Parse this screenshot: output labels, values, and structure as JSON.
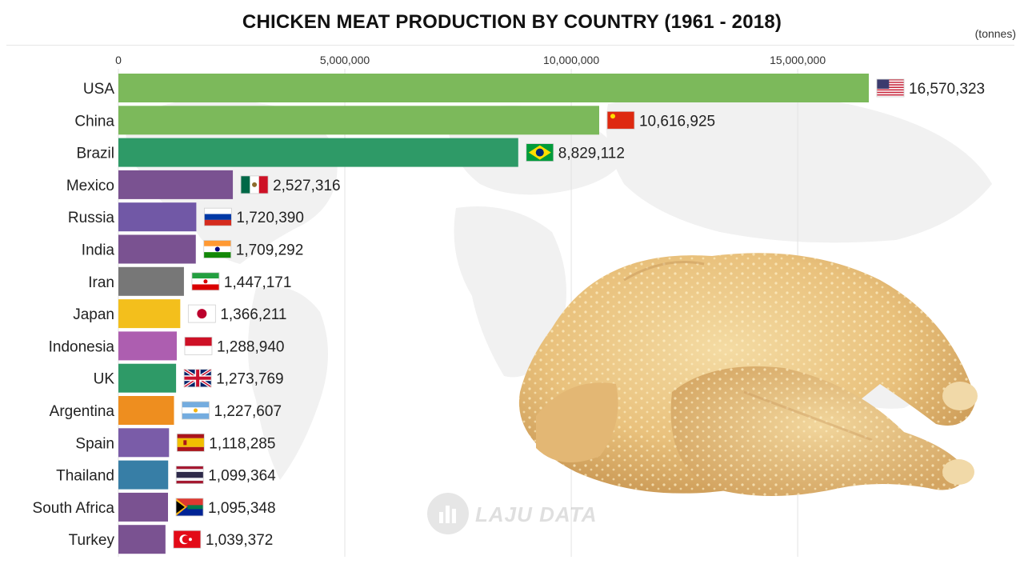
{
  "title": "CHICKEN MEAT PRODUCTION BY COUNTRY (1961 - 2018)",
  "unit_label": "(tonnes)",
  "watermark": "LAJU DATA",
  "chart_data": {
    "type": "bar",
    "orientation": "horizontal",
    "title": "CHICKEN MEAT PRODUCTION BY COUNTRY (1961 - 2018)",
    "unit": "(tonnes)",
    "xlim": [
      0,
      16570323
    ],
    "ticks": [
      0,
      5000000,
      10000000,
      15000000
    ],
    "tick_labels": [
      "0",
      "5,000,000",
      "10,000,000",
      "15,000,000"
    ],
    "grid": true,
    "categories": [
      "USA",
      "China",
      "Brazil",
      "Mexico",
      "Russia",
      "India",
      "Iran",
      "Japan",
      "Indonesia",
      "UK",
      "Argentina",
      "Spain",
      "Thailand",
      "South Africa",
      "Turkey"
    ],
    "values": [
      16570323,
      10616925,
      8829112,
      2527316,
      1720390,
      1709292,
      1447171,
      1366211,
      1288940,
      1273769,
      1227607,
      1118285,
      1099364,
      1095348,
      1039372
    ],
    "value_labels": [
      "16,570,323",
      "10,616,925",
      "8,829,112",
      "2,527,316",
      "1,720,390",
      "1,709,292",
      "1,447,171",
      "1,366,211",
      "1,288,940",
      "1,273,769",
      "1,227,607",
      "1,118,285",
      "1,099,364",
      "1,095,348",
      "1,039,372"
    ],
    "colors": [
      "#7cb95b",
      "#7cb95b",
      "#2e9a67",
      "#7a5291",
      "#7158a6",
      "#7a5291",
      "#777777",
      "#f3bf1c",
      "#ad5eb0",
      "#2e9a67",
      "#ee8e1f",
      "#7a5ca8",
      "#377ea6",
      "#7a5291",
      "#7a5291"
    ],
    "flags": [
      "usa-flag",
      "china-flag",
      "brazil-flag",
      "mexico-flag",
      "russia-flag",
      "india-flag",
      "iran-flag",
      "japan-flag",
      "indonesia-flag",
      "uk-flag",
      "argentina-flag",
      "spain-flag",
      "thailand-flag",
      "south-africa-flag",
      "turkey-flag"
    ]
  }
}
